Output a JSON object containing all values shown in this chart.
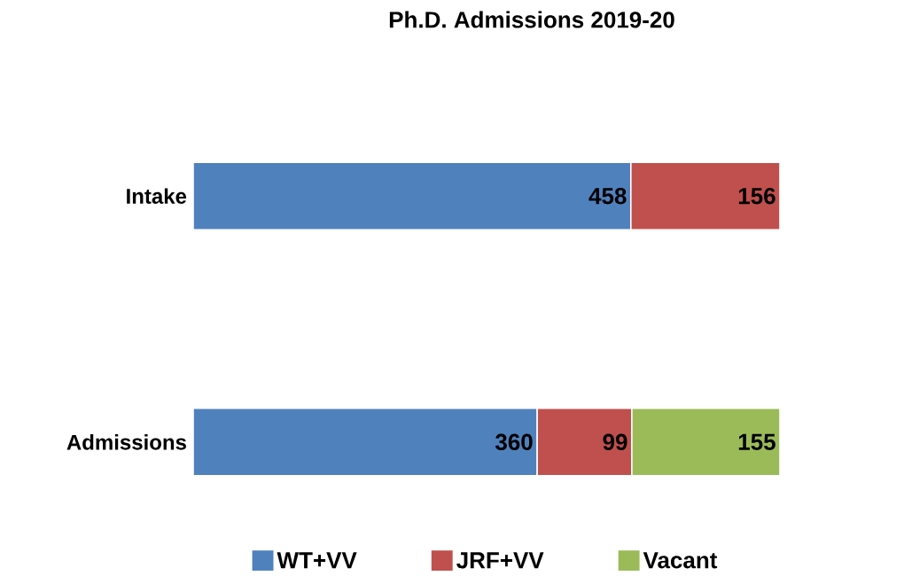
{
  "chart_data": {
    "type": "bar",
    "orientation": "horizontal",
    "stacked": true,
    "title": "Ph.D. Admissions 2019-20",
    "categories": [
      "Intake",
      "Admissions"
    ],
    "series": [
      {
        "name": "WT+VV",
        "color": "#4f81bd",
        "values": [
          458,
          360
        ]
      },
      {
        "name": "JRF+VV",
        "color": "#c0504d",
        "values": [
          156,
          99
        ]
      },
      {
        "name": "Vacant",
        "color": "#9bbb59",
        "values": [
          null,
          155
        ]
      }
    ],
    "data_labels": true,
    "legend": "bottom"
  }
}
